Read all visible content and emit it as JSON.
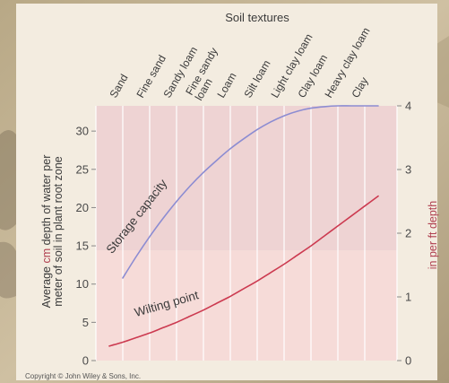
{
  "colors": {
    "paper": "#f3ece0",
    "plot_upper": "#eed3d3",
    "plot_lower": "#f6dbd8",
    "storage_line": "#8c8cd2",
    "wilting_line": "#cc3a50",
    "gridline": "#ffffff",
    "accent_text": "#b04050"
  },
  "copyright": "Copyright © John Wiley & Sons, Inc.",
  "chart_data": {
    "type": "line",
    "title": "Soil textures",
    "categories": [
      "Sand",
      "Fine sand",
      "Sandy loam",
      "Fine sandy loam",
      "Loam",
      "Silt loam",
      "Light clay loam",
      "Clay loam",
      "Heavy clay loam",
      "Clay"
    ],
    "category_label_lines": [
      [
        "Sand"
      ],
      [
        "Fine sand"
      ],
      [
        "Sandy loam"
      ],
      [
        "Fine sandy",
        "loam"
      ],
      [
        "Loam"
      ],
      [
        "Silt loam"
      ],
      [
        "Light clay loam"
      ],
      [
        "Clay loam"
      ],
      [
        "Heavy clay loam"
      ],
      [
        "Clay"
      ]
    ],
    "ylabel_left": {
      "line1_pre": "Average ",
      "line1_accent": "cm",
      "line1_post": " depth of water per",
      "line2": "meter of soil in plant root zone"
    },
    "ylabel_right": "in per ft depth",
    "ylim_left": [
      0,
      33.3
    ],
    "yticks_left": [
      0,
      5,
      10,
      15,
      20,
      25,
      30
    ],
    "ylim_right": [
      0,
      4
    ],
    "yticks_right": [
      0,
      1,
      2,
      3,
      4
    ],
    "grid": true,
    "series": [
      {
        "name": "Storage capacity",
        "line": "storage",
        "x": [
          0,
          0.5,
          1,
          1.5,
          2,
          2.5,
          3,
          3.5,
          4,
          4.5,
          5,
          5.5,
          6,
          6.5,
          7,
          7.5,
          8,
          8.5,
          9,
          9.5
        ],
        "values": [
          10.8,
          13.6,
          16.2,
          18.6,
          20.8,
          22.8,
          24.6,
          26.2,
          27.7,
          29.0,
          30.2,
          31.2,
          32.0,
          32.6,
          33.0,
          33.2,
          33.3,
          33.3,
          33.3,
          33.3
        ]
      },
      {
        "name": "Wilting point",
        "line": "wilting",
        "x": [
          -0.5,
          0,
          0.5,
          1,
          1.5,
          2,
          2.5,
          3,
          3.5,
          4,
          4.5,
          5,
          5.5,
          6,
          6.5,
          7,
          7.5,
          8,
          8.5,
          9,
          9.5
        ],
        "values": [
          1.9,
          2.4,
          3.0,
          3.6,
          4.3,
          5.0,
          5.8,
          6.6,
          7.5,
          8.4,
          9.4,
          10.4,
          11.5,
          12.6,
          13.8,
          15.0,
          16.3,
          17.6,
          18.9,
          20.2,
          21.5
        ]
      }
    ]
  }
}
